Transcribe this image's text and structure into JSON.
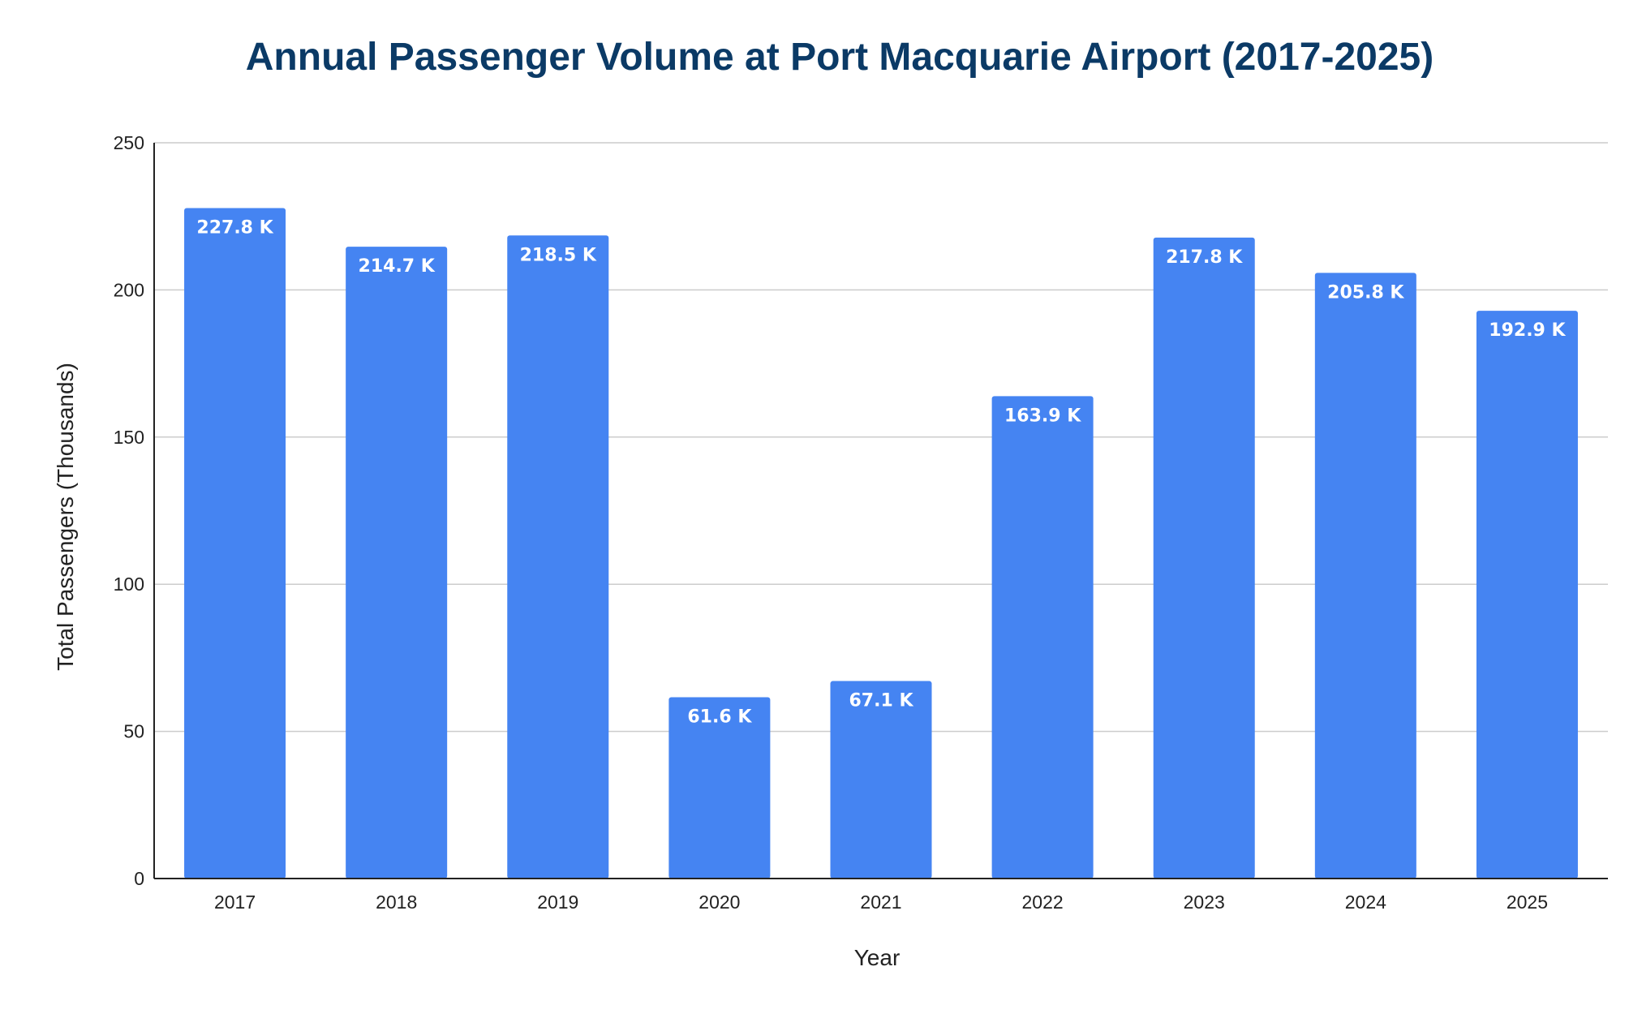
{
  "chart_data": {
    "type": "bar",
    "title": "Annual Passenger Volume at Port Macquarie Airport (2017-2025)",
    "xlabel": "Year",
    "ylabel": "Total Passengers (Thousands)",
    "categories": [
      "2017",
      "2018",
      "2019",
      "2020",
      "2021",
      "2022",
      "2023",
      "2024",
      "2025"
    ],
    "values": [
      227.8,
      214.7,
      218.5,
      61.6,
      67.1,
      163.9,
      217.8,
      205.8,
      192.9
    ],
    "data_labels": [
      "227.8 K",
      "214.7 K",
      "218.5 K",
      "61.6 K",
      "67.1 K",
      "163.9 K",
      "217.8 K",
      "205.8 K",
      "192.9 K"
    ],
    "ylim": [
      0,
      250
    ],
    "yticks": [
      0,
      50,
      100,
      150,
      200,
      250
    ],
    "grid": true,
    "legend": "none",
    "colors": {
      "bar": "#4584f2",
      "title": "#0b3a66",
      "grid": "#cccccc",
      "axis": "#222222"
    }
  }
}
